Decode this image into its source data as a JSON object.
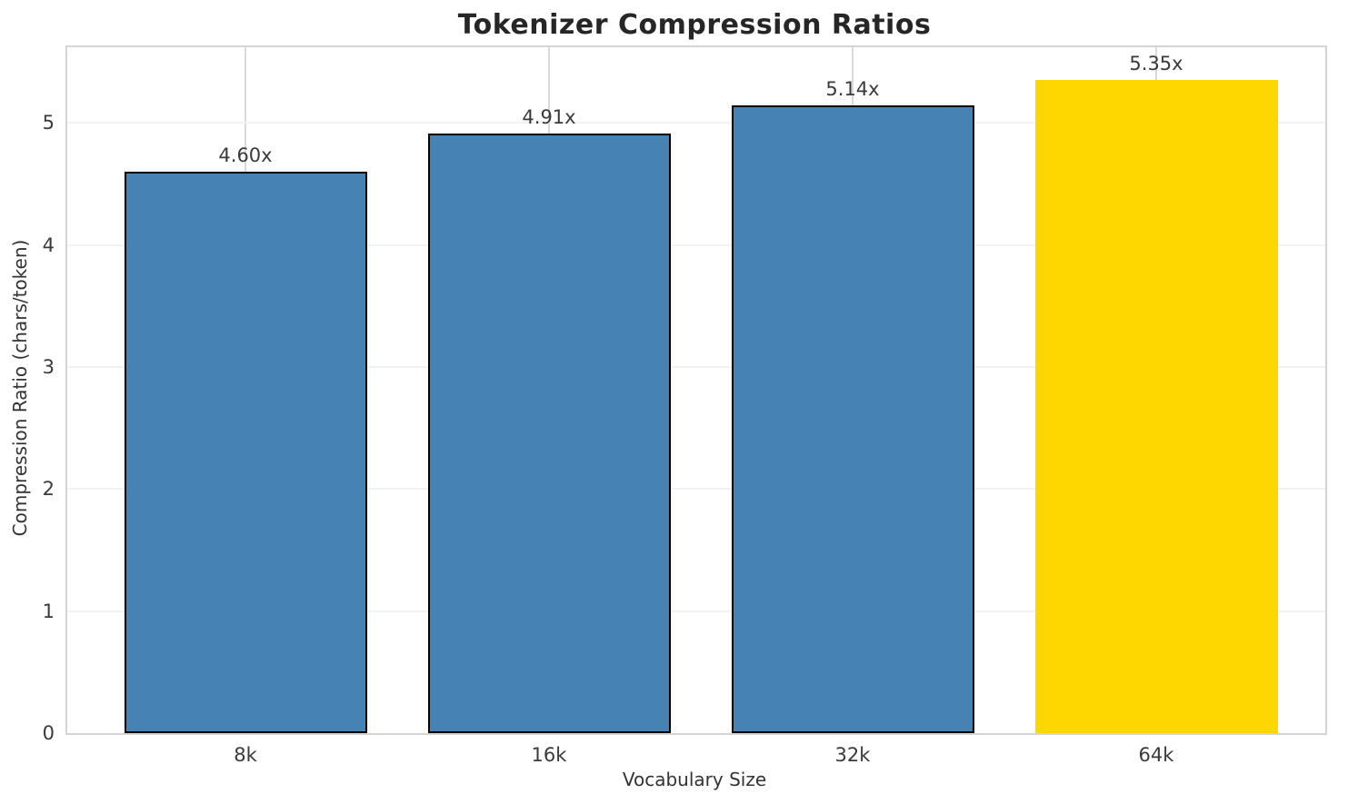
{
  "chart_data": {
    "type": "bar",
    "title": "Tokenizer Compression Ratios",
    "xlabel": "Vocabulary Size",
    "ylabel": "Compression Ratio (chars/token)",
    "categories": [
      "8k",
      "16k",
      "32k",
      "64k"
    ],
    "values": [
      4.6,
      4.91,
      5.14,
      5.35
    ],
    "bar_value_labels": [
      "4.60x",
      "4.91x",
      "5.14x",
      "5.35x"
    ],
    "bar_colors": [
      "#4682B4",
      "#4682B4",
      "#4682B4",
      "#FFD700"
    ],
    "bar_edge_colors": [
      "#000000",
      "#000000",
      "#000000",
      "none"
    ],
    "ylim": [
      0,
      5.62
    ],
    "yticks": [
      "0",
      "1",
      "2",
      "3",
      "4",
      "5"
    ],
    "grid": "on",
    "legend": "none",
    "highlight_category": "64k",
    "colors": {
      "bar_default": "#4682B4",
      "bar_highlight": "#FFD700",
      "bar_edge": "#000000",
      "spine": "#d4d4d4",
      "gridline_horizontal": "#f2f2f2",
      "gridline_vertical": "#dadada",
      "title_text": "#262626",
      "tick_text": "#3a3a3a"
    }
  }
}
